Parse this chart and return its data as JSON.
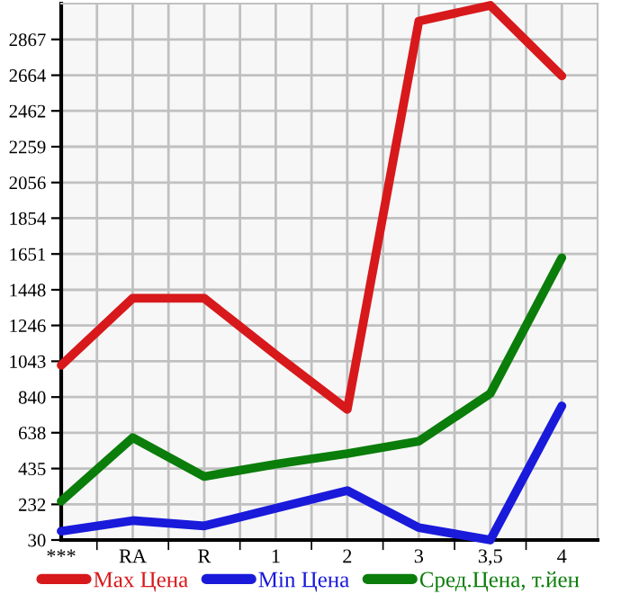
{
  "chart_data": {
    "type": "line",
    "categories": [
      "***",
      "RA",
      "R",
      "1",
      "2",
      "3",
      "3,5",
      "4"
    ],
    "series": [
      {
        "name": "Max Цена",
        "color": "#d7191c",
        "values": [
          1020,
          1400,
          1400,
          1080,
          770,
          2970,
          3060,
          2660
        ]
      },
      {
        "name": "Min Цена",
        "color": "#1a1adb",
        "values": [
          80,
          140,
          110,
          210,
          310,
          100,
          30,
          790
        ]
      },
      {
        "name": "Сред.Цена, т.йен",
        "color": "#0a7d0a",
        "values": [
          250,
          610,
          390,
          460,
          520,
          590,
          860,
          1630
        ]
      }
    ],
    "ylim": [
      30,
      3070
    ],
    "yticks": [
      30,
      232,
      435,
      638,
      840,
      1043,
      1246,
      1448,
      1651,
      1854,
      2056,
      2259,
      2462,
      2664,
      2867
    ],
    "grid": true,
    "legend": "bottom",
    "marker": "none",
    "line_style": "solid"
  }
}
